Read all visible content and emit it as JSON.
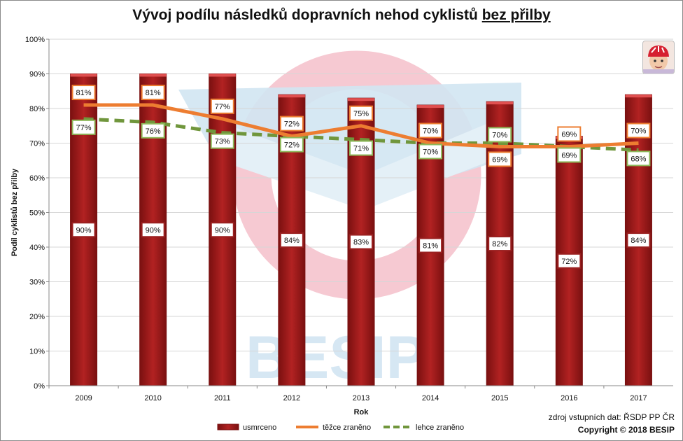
{
  "header": {
    "title_main": "Vývoj podílu následků dopravních nehod cyklistů ",
    "title_emph": "bez přilby"
  },
  "watermark": {
    "text": "BESIP"
  },
  "footer": {
    "source": "zdroj vstupních dat: ŘSDP PP ČR",
    "copyright": "Copyright © 2018 BESIP"
  },
  "icons": {
    "photo": "child-cyclist-helmet-photo"
  },
  "colors": {
    "bar": "#b22222",
    "bar_dark": "#7a1010",
    "severe": "#ed7d31",
    "light": "#70963c"
  },
  "chart_data": {
    "type": "bar",
    "categories": [
      "2009",
      "2010",
      "2011",
      "2012",
      "2013",
      "2014",
      "2015",
      "2016",
      "2017"
    ],
    "series": [
      {
        "name": "usmrceno",
        "type": "bar",
        "values": [
          90,
          90,
          90,
          84,
          83,
          81,
          82,
          72,
          84
        ],
        "labels": [
          "90%",
          "90%",
          "90%",
          "84%",
          "83%",
          "81%",
          "82%",
          "72%",
          "84%"
        ]
      },
      {
        "name": "těžce zraněno",
        "type": "line",
        "values": [
          81,
          81,
          77,
          72,
          75,
          70,
          69,
          69,
          70
        ],
        "labels": [
          "81%",
          "81%",
          "77%",
          "72%",
          "75%",
          "70%",
          "69%",
          "69%",
          "70%"
        ]
      },
      {
        "name": "lehce zraněno",
        "type": "line-dashed",
        "values": [
          77,
          76,
          73,
          72,
          71,
          70,
          70,
          69,
          68
        ],
        "labels": [
          "77%",
          "76%",
          "73%",
          "72%",
          "71%",
          "70%",
          "70%",
          "69%",
          "68%"
        ]
      }
    ],
    "xlabel": "Rok",
    "ylabel": "Podíl cyklistů  bez přilby",
    "ylim": [
      0,
      100
    ],
    "yticks": [
      "0%",
      "10%",
      "20%",
      "30%",
      "40%",
      "50%",
      "60%",
      "70%",
      "80%",
      "90%",
      "100%"
    ],
    "grid": true,
    "legend": "bottom"
  }
}
